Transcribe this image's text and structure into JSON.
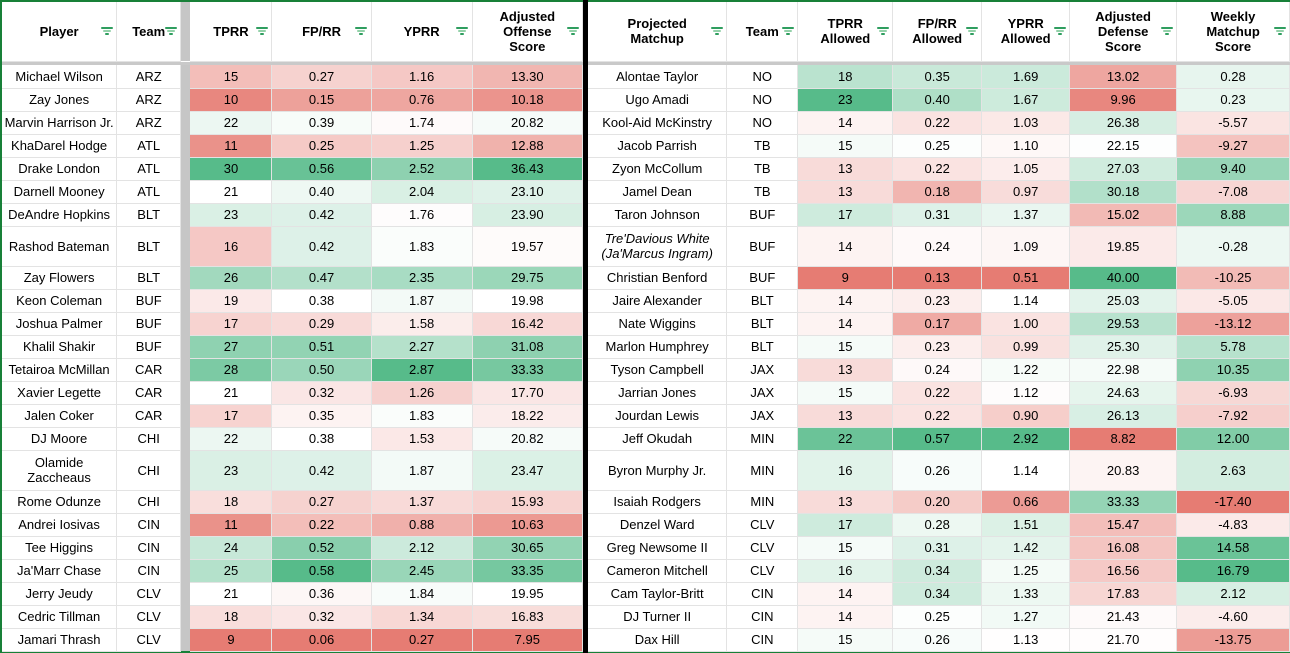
{
  "colors": {
    "scale_low": "#E67C73",
    "scale_mid": "#FFFFFF",
    "scale_high": "#57BB8A",
    "table_border_green": "#188038",
    "divider_black": "#000000",
    "filter_icon_green": "#2f9e5f",
    "gridline_gray": "#e3e3e3",
    "hidden_column_gray": "#c6c6c6",
    "frozen_row_gray": "#c9c9c9"
  },
  "left_table": {
    "columns": [
      {
        "key": "player",
        "label": "Player",
        "type": "name"
      },
      {
        "key": "team",
        "label": "Team",
        "type": "name"
      },
      {
        "key": "gap",
        "label": "",
        "type": "gap"
      },
      {
        "key": "tprr",
        "label": "TPRR",
        "type": "scale"
      },
      {
        "key": "fprr",
        "label": "FP/RR",
        "type": "scale"
      },
      {
        "key": "yprr",
        "label": "YPRR",
        "type": "scale"
      },
      {
        "key": "score",
        "label": "Adjusted Offense Score",
        "type": "scale"
      }
    ],
    "rows": [
      {
        "player": "Michael Wilson",
        "team": "ARZ",
        "tprr": "15",
        "fprr": "0.27",
        "yprr": "1.16",
        "score": "13.30"
      },
      {
        "player": "Zay Jones",
        "team": "ARZ",
        "tprr": "10",
        "fprr": "0.15",
        "yprr": "0.76",
        "score": "10.18"
      },
      {
        "player": "Marvin Harrison Jr.",
        "team": "ARZ",
        "tprr": "22",
        "fprr": "0.39",
        "yprr": "1.74",
        "score": "20.82"
      },
      {
        "player": "KhaDarel Hodge",
        "team": "ATL",
        "tprr": "11",
        "fprr": "0.25",
        "yprr": "1.25",
        "score": "12.88"
      },
      {
        "player": "Drake London",
        "team": "ATL",
        "tprr": "30",
        "fprr": "0.56",
        "yprr": "2.52",
        "score": "36.43"
      },
      {
        "player": "Darnell Mooney",
        "team": "ATL",
        "tprr": "21",
        "fprr": "0.40",
        "yprr": "2.04",
        "score": "23.10"
      },
      {
        "player": "DeAndre Hopkins",
        "team": "BLT",
        "tprr": "23",
        "fprr": "0.42",
        "yprr": "1.76",
        "score": "23.90"
      },
      {
        "player": "Rashod Bateman",
        "team": "BLT",
        "tprr": "16",
        "fprr": "0.42",
        "yprr": "1.83",
        "score": "19.57",
        "tall": true
      },
      {
        "player": "Zay Flowers",
        "team": "BLT",
        "tprr": "26",
        "fprr": "0.47",
        "yprr": "2.35",
        "score": "29.75"
      },
      {
        "player": "Keon Coleman",
        "team": "BUF",
        "tprr": "19",
        "fprr": "0.38",
        "yprr": "1.87",
        "score": "19.98"
      },
      {
        "player": "Joshua Palmer",
        "team": "BUF",
        "tprr": "17",
        "fprr": "0.29",
        "yprr": "1.58",
        "score": "16.42"
      },
      {
        "player": "Khalil Shakir",
        "team": "BUF",
        "tprr": "27",
        "fprr": "0.51",
        "yprr": "2.27",
        "score": "31.08"
      },
      {
        "player": "Tetairoa McMillan",
        "team": "CAR",
        "tprr": "28",
        "fprr": "0.50",
        "yprr": "2.87",
        "score": "33.33"
      },
      {
        "player": "Xavier Legette",
        "team": "CAR",
        "tprr": "21",
        "fprr": "0.32",
        "yprr": "1.26",
        "score": "17.70"
      },
      {
        "player": "Jalen Coker",
        "team": "CAR",
        "tprr": "17",
        "fprr": "0.35",
        "yprr": "1.83",
        "score": "18.22"
      },
      {
        "player": "DJ Moore",
        "team": "CHI",
        "tprr": "22",
        "fprr": "0.38",
        "yprr": "1.53",
        "score": "20.82"
      },
      {
        "player": "Olamide Zaccheaus",
        "team": "CHI",
        "tprr": "23",
        "fprr": "0.42",
        "yprr": "1.87",
        "score": "23.47",
        "tall": true
      },
      {
        "player": "Rome Odunze",
        "team": "CHI",
        "tprr": "18",
        "fprr": "0.27",
        "yprr": "1.37",
        "score": "15.93"
      },
      {
        "player": "Andrei Iosivas",
        "team": "CIN",
        "tprr": "11",
        "fprr": "0.22",
        "yprr": "0.88",
        "score": "10.63"
      },
      {
        "player": "Tee Higgins",
        "team": "CIN",
        "tprr": "24",
        "fprr": "0.52",
        "yprr": "2.12",
        "score": "30.65"
      },
      {
        "player": "Ja'Marr Chase",
        "team": "CIN",
        "tprr": "25",
        "fprr": "0.58",
        "yprr": "2.45",
        "score": "33.35"
      },
      {
        "player": "Jerry Jeudy",
        "team": "CLV",
        "tprr": "21",
        "fprr": "0.36",
        "yprr": "1.84",
        "score": "19.95"
      },
      {
        "player": "Cedric Tillman",
        "team": "CLV",
        "tprr": "18",
        "fprr": "0.32",
        "yprr": "1.34",
        "score": "16.83"
      },
      {
        "player": "Jamari Thrash",
        "team": "CLV",
        "tprr": "9",
        "fprr": "0.06",
        "yprr": "0.27",
        "score": "7.95"
      }
    ]
  },
  "right_table": {
    "columns": [
      {
        "key": "player",
        "label": "Projected Matchup",
        "type": "name"
      },
      {
        "key": "team",
        "label": "Team",
        "type": "name"
      },
      {
        "key": "tprr",
        "label": "TPRR Allowed",
        "type": "scale"
      },
      {
        "key": "fprr",
        "label": "FP/RR Allowed",
        "type": "scale"
      },
      {
        "key": "yprr",
        "label": "YPRR Allowed",
        "type": "scale"
      },
      {
        "key": "score",
        "label": "Adjusted Defense Score",
        "type": "scale"
      },
      {
        "key": "weekly",
        "label": "Weekly Matchup Score",
        "type": "scale"
      }
    ],
    "rows": [
      {
        "player": "Alontae Taylor",
        "team": "NO",
        "tprr": "18",
        "fprr": "0.35",
        "yprr": "1.69",
        "score": "13.02",
        "weekly": "0.28"
      },
      {
        "player": "Ugo Amadi",
        "team": "NO",
        "tprr": "23",
        "fprr": "0.40",
        "yprr": "1.67",
        "score": "9.96",
        "weekly": "0.23"
      },
      {
        "player": "Kool-Aid McKinstry",
        "team": "NO",
        "tprr": "14",
        "fprr": "0.22",
        "yprr": "1.03",
        "score": "26.38",
        "weekly": "-5.57"
      },
      {
        "player": "Jacob Parrish",
        "team": "TB",
        "tprr": "15",
        "fprr": "0.25",
        "yprr": "1.10",
        "score": "22.15",
        "weekly": "-9.27"
      },
      {
        "player": "Zyon McCollum",
        "team": "TB",
        "tprr": "13",
        "fprr": "0.22",
        "yprr": "1.05",
        "score": "27.03",
        "weekly": "9.40"
      },
      {
        "player": "Jamel Dean",
        "team": "TB",
        "tprr": "13",
        "fprr": "0.18",
        "yprr": "0.97",
        "score": "30.18",
        "weekly": "-7.08"
      },
      {
        "player": "Taron Johnson",
        "team": "BUF",
        "tprr": "17",
        "fprr": "0.31",
        "yprr": "1.37",
        "score": "15.02",
        "weekly": "8.88"
      },
      {
        "player": "Tre'Davious White\n(Ja'Marcus Ingram)",
        "team": "BUF",
        "tprr": "14",
        "fprr": "0.24",
        "yprr": "1.09",
        "score": "19.85",
        "weekly": "-0.28",
        "tall": true,
        "italic": true
      },
      {
        "player": "Christian Benford",
        "team": "BUF",
        "tprr": "9",
        "fprr": "0.13",
        "yprr": "0.51",
        "score": "40.00",
        "weekly": "-10.25"
      },
      {
        "player": "Jaire Alexander",
        "team": "BLT",
        "tprr": "14",
        "fprr": "0.23",
        "yprr": "1.14",
        "score": "25.03",
        "weekly": "-5.05"
      },
      {
        "player": "Nate Wiggins",
        "team": "BLT",
        "tprr": "14",
        "fprr": "0.17",
        "yprr": "1.00",
        "score": "29.53",
        "weekly": "-13.12"
      },
      {
        "player": "Marlon Humphrey",
        "team": "BLT",
        "tprr": "15",
        "fprr": "0.23",
        "yprr": "0.99",
        "score": "25.30",
        "weekly": "5.78"
      },
      {
        "player": "Tyson Campbell",
        "team": "JAX",
        "tprr": "13",
        "fprr": "0.24",
        "yprr": "1.22",
        "score": "22.98",
        "weekly": "10.35"
      },
      {
        "player": "Jarrian Jones",
        "team": "JAX",
        "tprr": "15",
        "fprr": "0.22",
        "yprr": "1.12",
        "score": "24.63",
        "weekly": "-6.93"
      },
      {
        "player": "Jourdan Lewis",
        "team": "JAX",
        "tprr": "13",
        "fprr": "0.22",
        "yprr": "0.90",
        "score": "26.13",
        "weekly": "-7.92"
      },
      {
        "player": "Jeff Okudah",
        "team": "MIN",
        "tprr": "22",
        "fprr": "0.57",
        "yprr": "2.92",
        "score": "8.82",
        "weekly": "12.00"
      },
      {
        "player": "Byron Murphy Jr.",
        "team": "MIN",
        "tprr": "16",
        "fprr": "0.26",
        "yprr": "1.14",
        "score": "20.83",
        "weekly": "2.63",
        "tall": true
      },
      {
        "player": "Isaiah Rodgers",
        "team": "MIN",
        "tprr": "13",
        "fprr": "0.20",
        "yprr": "0.66",
        "score": "33.33",
        "weekly": "-17.40"
      },
      {
        "player": "Denzel Ward",
        "team": "CLV",
        "tprr": "17",
        "fprr": "0.28",
        "yprr": "1.51",
        "score": "15.47",
        "weekly": "-4.83"
      },
      {
        "player": "Greg Newsome II",
        "team": "CLV",
        "tprr": "15",
        "fprr": "0.31",
        "yprr": "1.42",
        "score": "16.08",
        "weekly": "14.58"
      },
      {
        "player": "Cameron Mitchell",
        "team": "CLV",
        "tprr": "16",
        "fprr": "0.34",
        "yprr": "1.25",
        "score": "16.56",
        "weekly": "16.79"
      },
      {
        "player": "Cam Taylor-Britt",
        "team": "CIN",
        "tprr": "14",
        "fprr": "0.34",
        "yprr": "1.33",
        "score": "17.83",
        "weekly": "2.12"
      },
      {
        "player": "DJ Turner II",
        "team": "CIN",
        "tprr": "14",
        "fprr": "0.25",
        "yprr": "1.27",
        "score": "21.43",
        "weekly": "-4.60"
      },
      {
        "player": "Dax Hill",
        "team": "CIN",
        "tprr": "15",
        "fprr": "0.26",
        "yprr": "1.13",
        "score": "21.70",
        "weekly": "-13.75"
      }
    ]
  }
}
